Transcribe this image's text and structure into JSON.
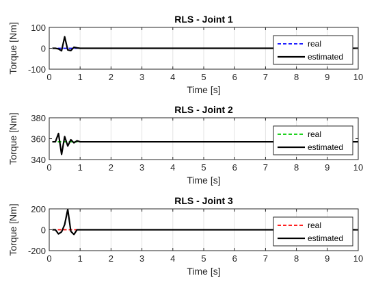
{
  "chart_data": [
    {
      "type": "line",
      "title": "RLS - Joint 1",
      "xlabel": "Time [s]",
      "ylabel": "Torque [Nm]",
      "xlim": [
        0,
        10
      ],
      "ylim": [
        -100,
        100
      ],
      "xticks": [
        "0",
        "1",
        "2",
        "3",
        "4",
        "5",
        "6",
        "7",
        "8",
        "9",
        "10"
      ],
      "yticks": [
        "100",
        "0",
        "-100"
      ],
      "grid": "x",
      "legend": "upper-right",
      "series": [
        {
          "name": "real",
          "color": "#0000ff",
          "style": "dashed",
          "x": [
            0.1,
            10
          ],
          "y": [
            0,
            0
          ]
        },
        {
          "name": "estimated",
          "color": "#000000",
          "style": "solid",
          "x": [
            0.1,
            0.2,
            0.3,
            0.4,
            0.5,
            0.6,
            0.7,
            0.8,
            0.9,
            1.0,
            1.1,
            10
          ],
          "y": [
            0,
            0,
            -3,
            -12,
            55,
            -8,
            -11,
            5,
            2,
            0,
            0,
            0
          ]
        }
      ]
    },
    {
      "type": "line",
      "title": "RLS - Joint 2",
      "xlabel": "Time [s]",
      "ylabel": "Torque [Nm]",
      "xlim": [
        0,
        10
      ],
      "ylim": [
        340,
        380
      ],
      "xticks": [
        "0",
        "1",
        "2",
        "3",
        "4",
        "5",
        "6",
        "7",
        "8",
        "9",
        "10"
      ],
      "yticks": [
        "380",
        "360",
        "340"
      ],
      "grid": "x",
      "legend": "upper-right",
      "series": [
        {
          "name": "real",
          "color": "#00cc00",
          "style": "dashed",
          "x": [
            0.1,
            10
          ],
          "y": [
            357,
            357
          ]
        },
        {
          "name": "estimated",
          "color": "#000000",
          "style": "solid",
          "x": [
            0.1,
            0.2,
            0.3,
            0.4,
            0.5,
            0.6,
            0.7,
            0.8,
            0.9,
            1.0,
            1.1,
            10
          ],
          "y": [
            357,
            357,
            365,
            345,
            362,
            353,
            359,
            356,
            358,
            357,
            357,
            357
          ]
        }
      ]
    },
    {
      "type": "line",
      "title": "RLS - Joint 3",
      "xlabel": "Time [s]",
      "ylabel": "Torque [Nm]",
      "xlim": [
        0,
        10
      ],
      "ylim": [
        -200,
        200
      ],
      "xticks": [
        "0",
        "1",
        "2",
        "3",
        "4",
        "5",
        "6",
        "7",
        "8",
        "9",
        "10"
      ],
      "yticks": [
        "200",
        "0",
        "-200"
      ],
      "grid": "x",
      "legend": "upper-right",
      "series": [
        {
          "name": "real",
          "color": "#ff0000",
          "style": "dashed",
          "x": [
            0.1,
            10
          ],
          "y": [
            0,
            0
          ]
        },
        {
          "name": "estimated",
          "color": "#000000",
          "style": "solid",
          "x": [
            0.1,
            0.2,
            0.3,
            0.4,
            0.5,
            0.6,
            0.7,
            0.8,
            0.9,
            1.0,
            10
          ],
          "y": [
            0,
            0,
            -40,
            -20,
            50,
            195,
            -15,
            -45,
            0,
            0,
            0
          ]
        }
      ]
    }
  ]
}
